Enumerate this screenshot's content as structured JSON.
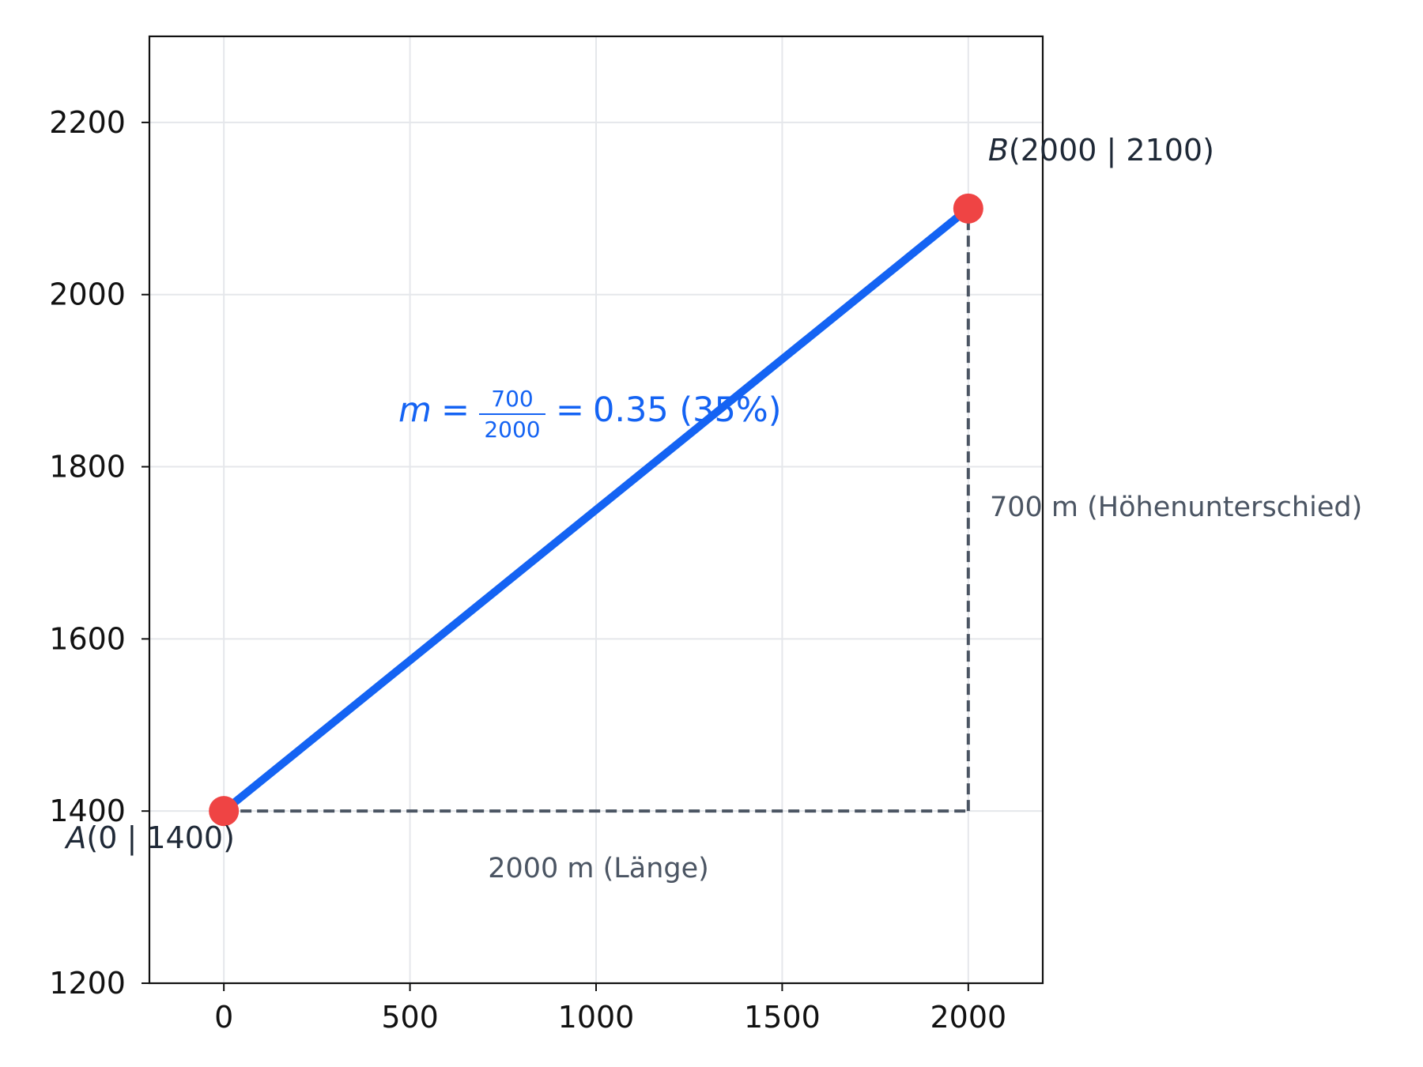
{
  "chart_data": {
    "type": "line",
    "xlim": [
      -200,
      2200
    ],
    "ylim": [
      1200,
      2300
    ],
    "x_ticks": [
      0,
      500,
      1000,
      1500,
      2000
    ],
    "y_ticks": [
      1200,
      1400,
      1600,
      1800,
      2000,
      2200
    ],
    "grid": true,
    "colors": {
      "line": "#1463f3",
      "points": "#ef4444",
      "dashed": "#4b5563",
      "grid": "#e5e7eb"
    },
    "series": [
      {
        "x": [
          0,
          2000
        ],
        "y": [
          1400,
          2100
        ]
      }
    ],
    "points": [
      {
        "x": 0,
        "y": 1400,
        "name": "A",
        "coords": "(0 | 1400)"
      },
      {
        "x": 2000,
        "y": 2100,
        "name": "B",
        "coords": "(2000 | 2100)"
      }
    ],
    "dashed_lines": [
      {
        "x": [
          0,
          2000
        ],
        "y": [
          1400,
          1400
        ]
      },
      {
        "x": [
          2000,
          2000
        ],
        "y": [
          1400,
          2100
        ]
      }
    ],
    "annotations": {
      "horizontal_label": "2000 m (Länge)",
      "vertical_label": "700 m (Höhenunterschied)",
      "formula": {
        "variable": "m",
        "numerator": "700",
        "denominator": "2000",
        "result": "0.35 (35%)"
      }
    }
  }
}
